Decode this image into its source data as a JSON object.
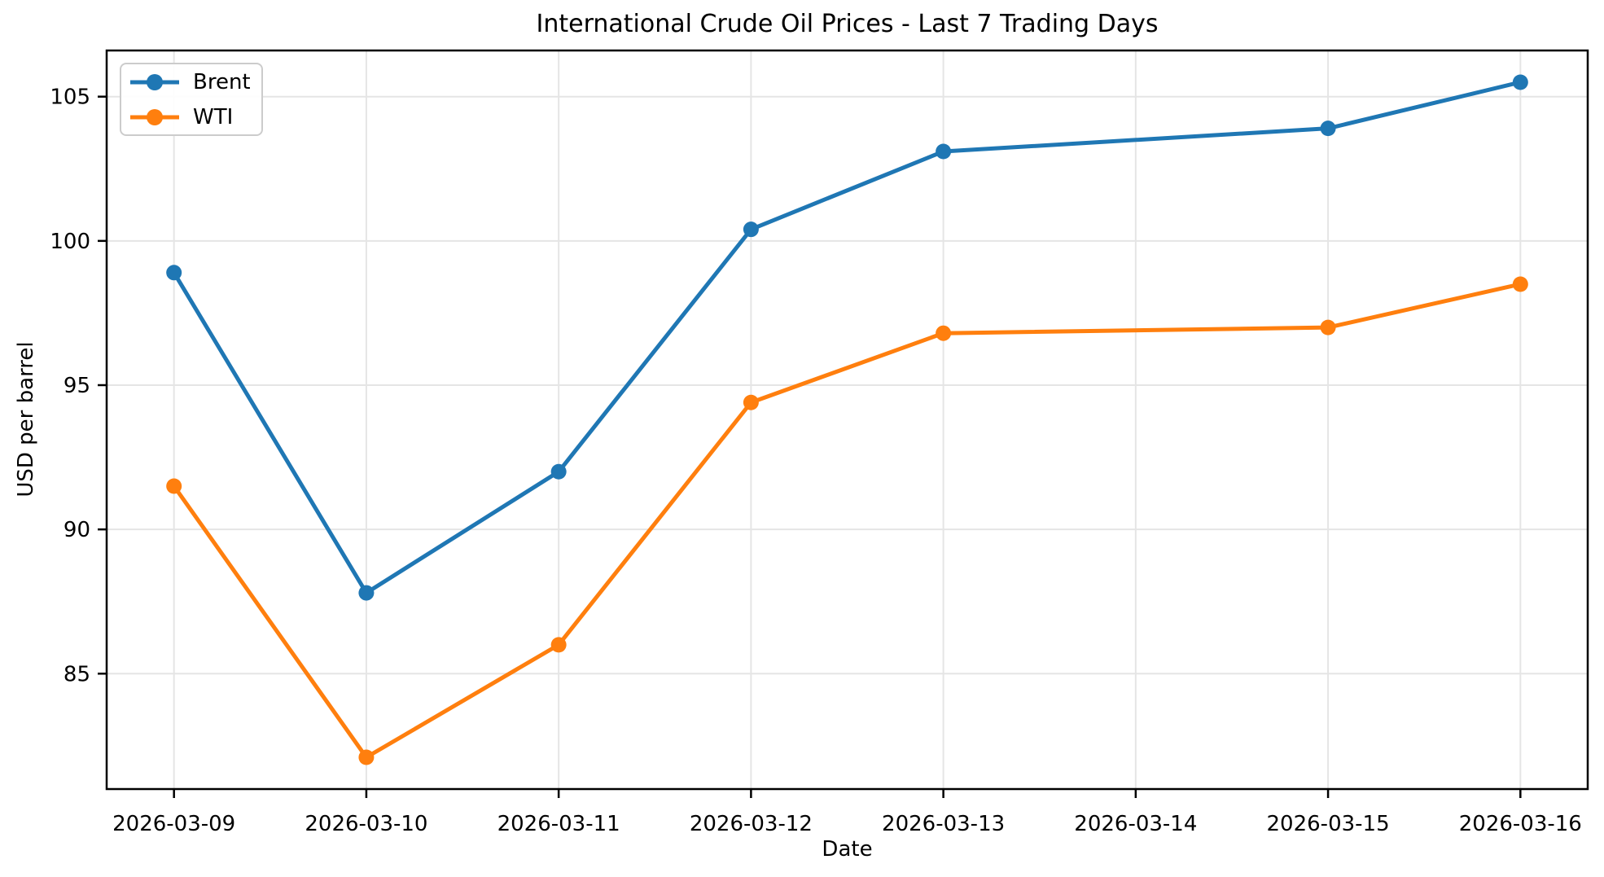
{
  "chart_data": {
    "type": "line",
    "title": "International Crude Oil Prices - Last 7 Trading Days",
    "xlabel": "Date",
    "ylabel": "USD per barrel",
    "background_color": "#ffffff",
    "grid": true,
    "grid_color": "#e5e5e5",
    "spine_color": "#000000",
    "legend_position": "upper left",
    "x_tick_labels": [
      "2026-03-09",
      "2026-03-10",
      "2026-03-11",
      "2026-03-12",
      "2026-03-13",
      "2026-03-14",
      "2026-03-15",
      "2026-03-16"
    ],
    "y_ticks": [
      85,
      90,
      95,
      100,
      105
    ],
    "ylim": [
      81.0,
      106.6
    ],
    "x_margin": 0.35,
    "series": [
      {
        "name": "Brent",
        "color": "#1f77b4",
        "dates": [
          "2026-03-09",
          "2026-03-10",
          "2026-03-11",
          "2026-03-12",
          "2026-03-13",
          "2026-03-15",
          "2026-03-16"
        ],
        "values": [
          98.9,
          87.8,
          92.0,
          100.4,
          103.1,
          103.9,
          105.5
        ]
      },
      {
        "name": "WTI",
        "color": "#ff7f0e",
        "dates": [
          "2026-03-09",
          "2026-03-10",
          "2026-03-11",
          "2026-03-12",
          "2026-03-13",
          "2026-03-15",
          "2026-03-16"
        ],
        "values": [
          91.5,
          82.1,
          86.0,
          94.4,
          96.8,
          97.0,
          98.5
        ]
      }
    ]
  }
}
